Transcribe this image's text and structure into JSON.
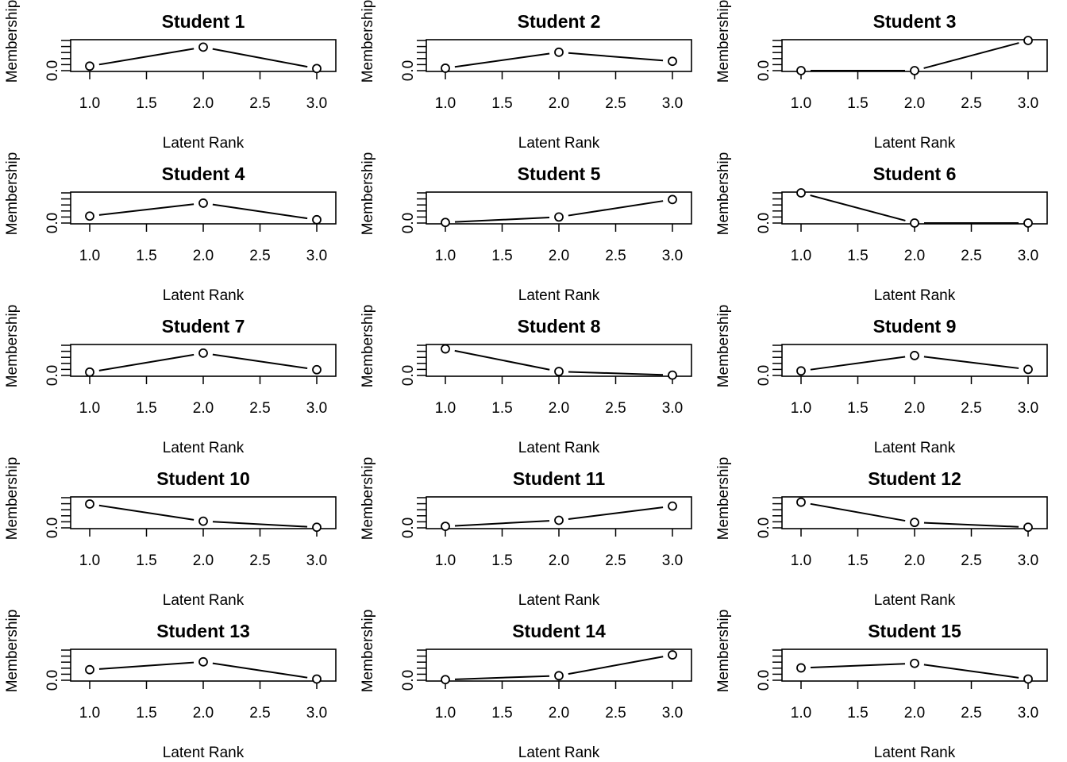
{
  "chart_data": [
    {
      "type": "line",
      "title": "Student 1",
      "xlabel": "Latent Rank",
      "ylabel": "Membership",
      "x": [
        1,
        2,
        3
      ],
      "values": [
        0.15,
        0.78,
        0.07
      ],
      "xlim": [
        1,
        3
      ],
      "ylim": [
        0,
        1
      ],
      "xticks": [
        "1.0",
        "1.5",
        "2.0",
        "2.5",
        "3.0"
      ],
      "yticks": [
        "0.0"
      ]
    },
    {
      "type": "line",
      "title": "Student 2",
      "xlabel": "Latent Rank",
      "ylabel": "Membership",
      "x": [
        1,
        2,
        3
      ],
      "values": [
        0.08,
        0.61,
        0.31
      ],
      "xlim": [
        1,
        3
      ],
      "ylim": [
        0,
        1
      ],
      "xticks": [
        "1.0",
        "1.5",
        "2.0",
        "2.5",
        "3.0"
      ],
      "yticks": [
        "0.0"
      ]
    },
    {
      "type": "line",
      "title": "Student 3",
      "xlabel": "Latent Rank",
      "ylabel": "Membership",
      "x": [
        1,
        2,
        3
      ],
      "values": [
        0.0,
        0.0,
        1.0
      ],
      "xlim": [
        1,
        3
      ],
      "ylim": [
        0,
        1
      ],
      "xticks": [
        "1.0",
        "1.5",
        "2.0",
        "2.5",
        "3.0"
      ],
      "yticks": [
        "0.0"
      ]
    },
    {
      "type": "line",
      "title": "Student 4",
      "xlabel": "Latent Rank",
      "ylabel": "Membership",
      "x": [
        1,
        2,
        3
      ],
      "values": [
        0.23,
        0.66,
        0.11
      ],
      "xlim": [
        1,
        3
      ],
      "ylim": [
        0,
        1
      ],
      "xticks": [
        "1.0",
        "1.5",
        "2.0",
        "2.5",
        "3.0"
      ],
      "yticks": [
        "0.0"
      ]
    },
    {
      "type": "line",
      "title": "Student 5",
      "xlabel": "Latent Rank",
      "ylabel": "Membership",
      "x": [
        1,
        2,
        3
      ],
      "values": [
        0.02,
        0.2,
        0.78
      ],
      "xlim": [
        1,
        3
      ],
      "ylim": [
        0,
        1
      ],
      "xticks": [
        "1.0",
        "1.5",
        "2.0",
        "2.5",
        "3.0"
      ],
      "yticks": [
        "0.0"
      ]
    },
    {
      "type": "line",
      "title": "Student 6",
      "xlabel": "Latent Rank",
      "ylabel": "Membership",
      "x": [
        1,
        2,
        3
      ],
      "values": [
        1.0,
        0.0,
        0.0
      ],
      "xlim": [
        1,
        3
      ],
      "ylim": [
        0,
        1
      ],
      "xticks": [
        "1.0",
        "1.5",
        "2.0",
        "2.5",
        "3.0"
      ],
      "yticks": [
        "0.0"
      ]
    },
    {
      "type": "line",
      "title": "Student 7",
      "xlabel": "Latent Rank",
      "ylabel": "Membership",
      "x": [
        1,
        2,
        3
      ],
      "values": [
        0.11,
        0.74,
        0.19
      ],
      "xlim": [
        1,
        3
      ],
      "ylim": [
        0,
        1
      ],
      "xticks": [
        "1.0",
        "1.5",
        "2.0",
        "2.5",
        "3.0"
      ],
      "yticks": [
        "0.0"
      ]
    },
    {
      "type": "line",
      "title": "Student 8",
      "xlabel": "Latent Rank",
      "ylabel": "Membership",
      "x": [
        1,
        2,
        3
      ],
      "values": [
        0.88,
        0.13,
        0.01
      ],
      "xlim": [
        1,
        3
      ],
      "ylim": [
        0,
        1
      ],
      "xticks": [
        "1.0",
        "1.5",
        "2.0",
        "2.5",
        "3.0"
      ],
      "yticks": [
        "0.0"
      ]
    },
    {
      "type": "line",
      "title": "Student 9",
      "xlabel": "Latent Rank",
      "ylabel": "Membership",
      "x": [
        1,
        2,
        3
      ],
      "values": [
        0.15,
        0.66,
        0.2
      ],
      "xlim": [
        1,
        3
      ],
      "ylim": [
        0,
        1
      ],
      "xticks": [
        "1.0",
        "1.5",
        "2.0",
        "2.5",
        "3.0"
      ],
      "yticks": [
        "0.0"
      ]
    },
    {
      "type": "line",
      "title": "Student 10",
      "xlabel": "Latent Rank",
      "ylabel": "Membership",
      "x": [
        1,
        2,
        3
      ],
      "values": [
        0.79,
        0.22,
        0.02
      ],
      "xlim": [
        1,
        3
      ],
      "ylim": [
        0,
        1
      ],
      "xticks": [
        "1.0",
        "1.5",
        "2.0",
        "2.5",
        "3.0"
      ],
      "yticks": [
        "0.0"
      ]
    },
    {
      "type": "line",
      "title": "Student 11",
      "xlabel": "Latent Rank",
      "ylabel": "Membership",
      "x": [
        1,
        2,
        3
      ],
      "values": [
        0.05,
        0.25,
        0.72
      ],
      "xlim": [
        1,
        3
      ],
      "ylim": [
        0,
        1
      ],
      "xticks": [
        "1.0",
        "1.5",
        "2.0",
        "2.5",
        "3.0"
      ],
      "yticks": [
        "0.0"
      ]
    },
    {
      "type": "line",
      "title": "Student 12",
      "xlabel": "Latent Rank",
      "ylabel": "Membership",
      "x": [
        1,
        2,
        3
      ],
      "values": [
        0.85,
        0.18,
        0.02
      ],
      "xlim": [
        1,
        3
      ],
      "ylim": [
        0,
        1
      ],
      "xticks": [
        "1.0",
        "1.5",
        "2.0",
        "2.5",
        "3.0"
      ],
      "yticks": [
        "0.0"
      ]
    },
    {
      "type": "line",
      "title": "Student 13",
      "xlabel": "Latent Rank",
      "ylabel": "Membership",
      "x": [
        1,
        2,
        3
      ],
      "values": [
        0.35,
        0.61,
        0.04
      ],
      "xlim": [
        1,
        3
      ],
      "ylim": [
        0,
        1
      ],
      "xticks": [
        "1.0",
        "1.5",
        "2.0",
        "2.5",
        "3.0"
      ],
      "yticks": [
        "0.0"
      ]
    },
    {
      "type": "line",
      "title": "Student 14",
      "xlabel": "Latent Rank",
      "ylabel": "Membership",
      "x": [
        1,
        2,
        3
      ],
      "values": [
        0.02,
        0.15,
        0.84
      ],
      "xlim": [
        1,
        3
      ],
      "ylim": [
        0,
        1
      ],
      "xticks": [
        "1.0",
        "1.5",
        "2.0",
        "2.5",
        "3.0"
      ],
      "yticks": [
        "0.0"
      ]
    },
    {
      "type": "line",
      "title": "Student 15",
      "xlabel": "Latent Rank",
      "ylabel": "Membership",
      "x": [
        1,
        2,
        3
      ],
      "values": [
        0.41,
        0.56,
        0.04
      ],
      "xlim": [
        1,
        3
      ],
      "ylim": [
        0,
        1
      ],
      "xticks": [
        "1.0",
        "1.5",
        "2.0",
        "2.5",
        "3.0"
      ],
      "yticks": [
        "0.0"
      ]
    }
  ]
}
